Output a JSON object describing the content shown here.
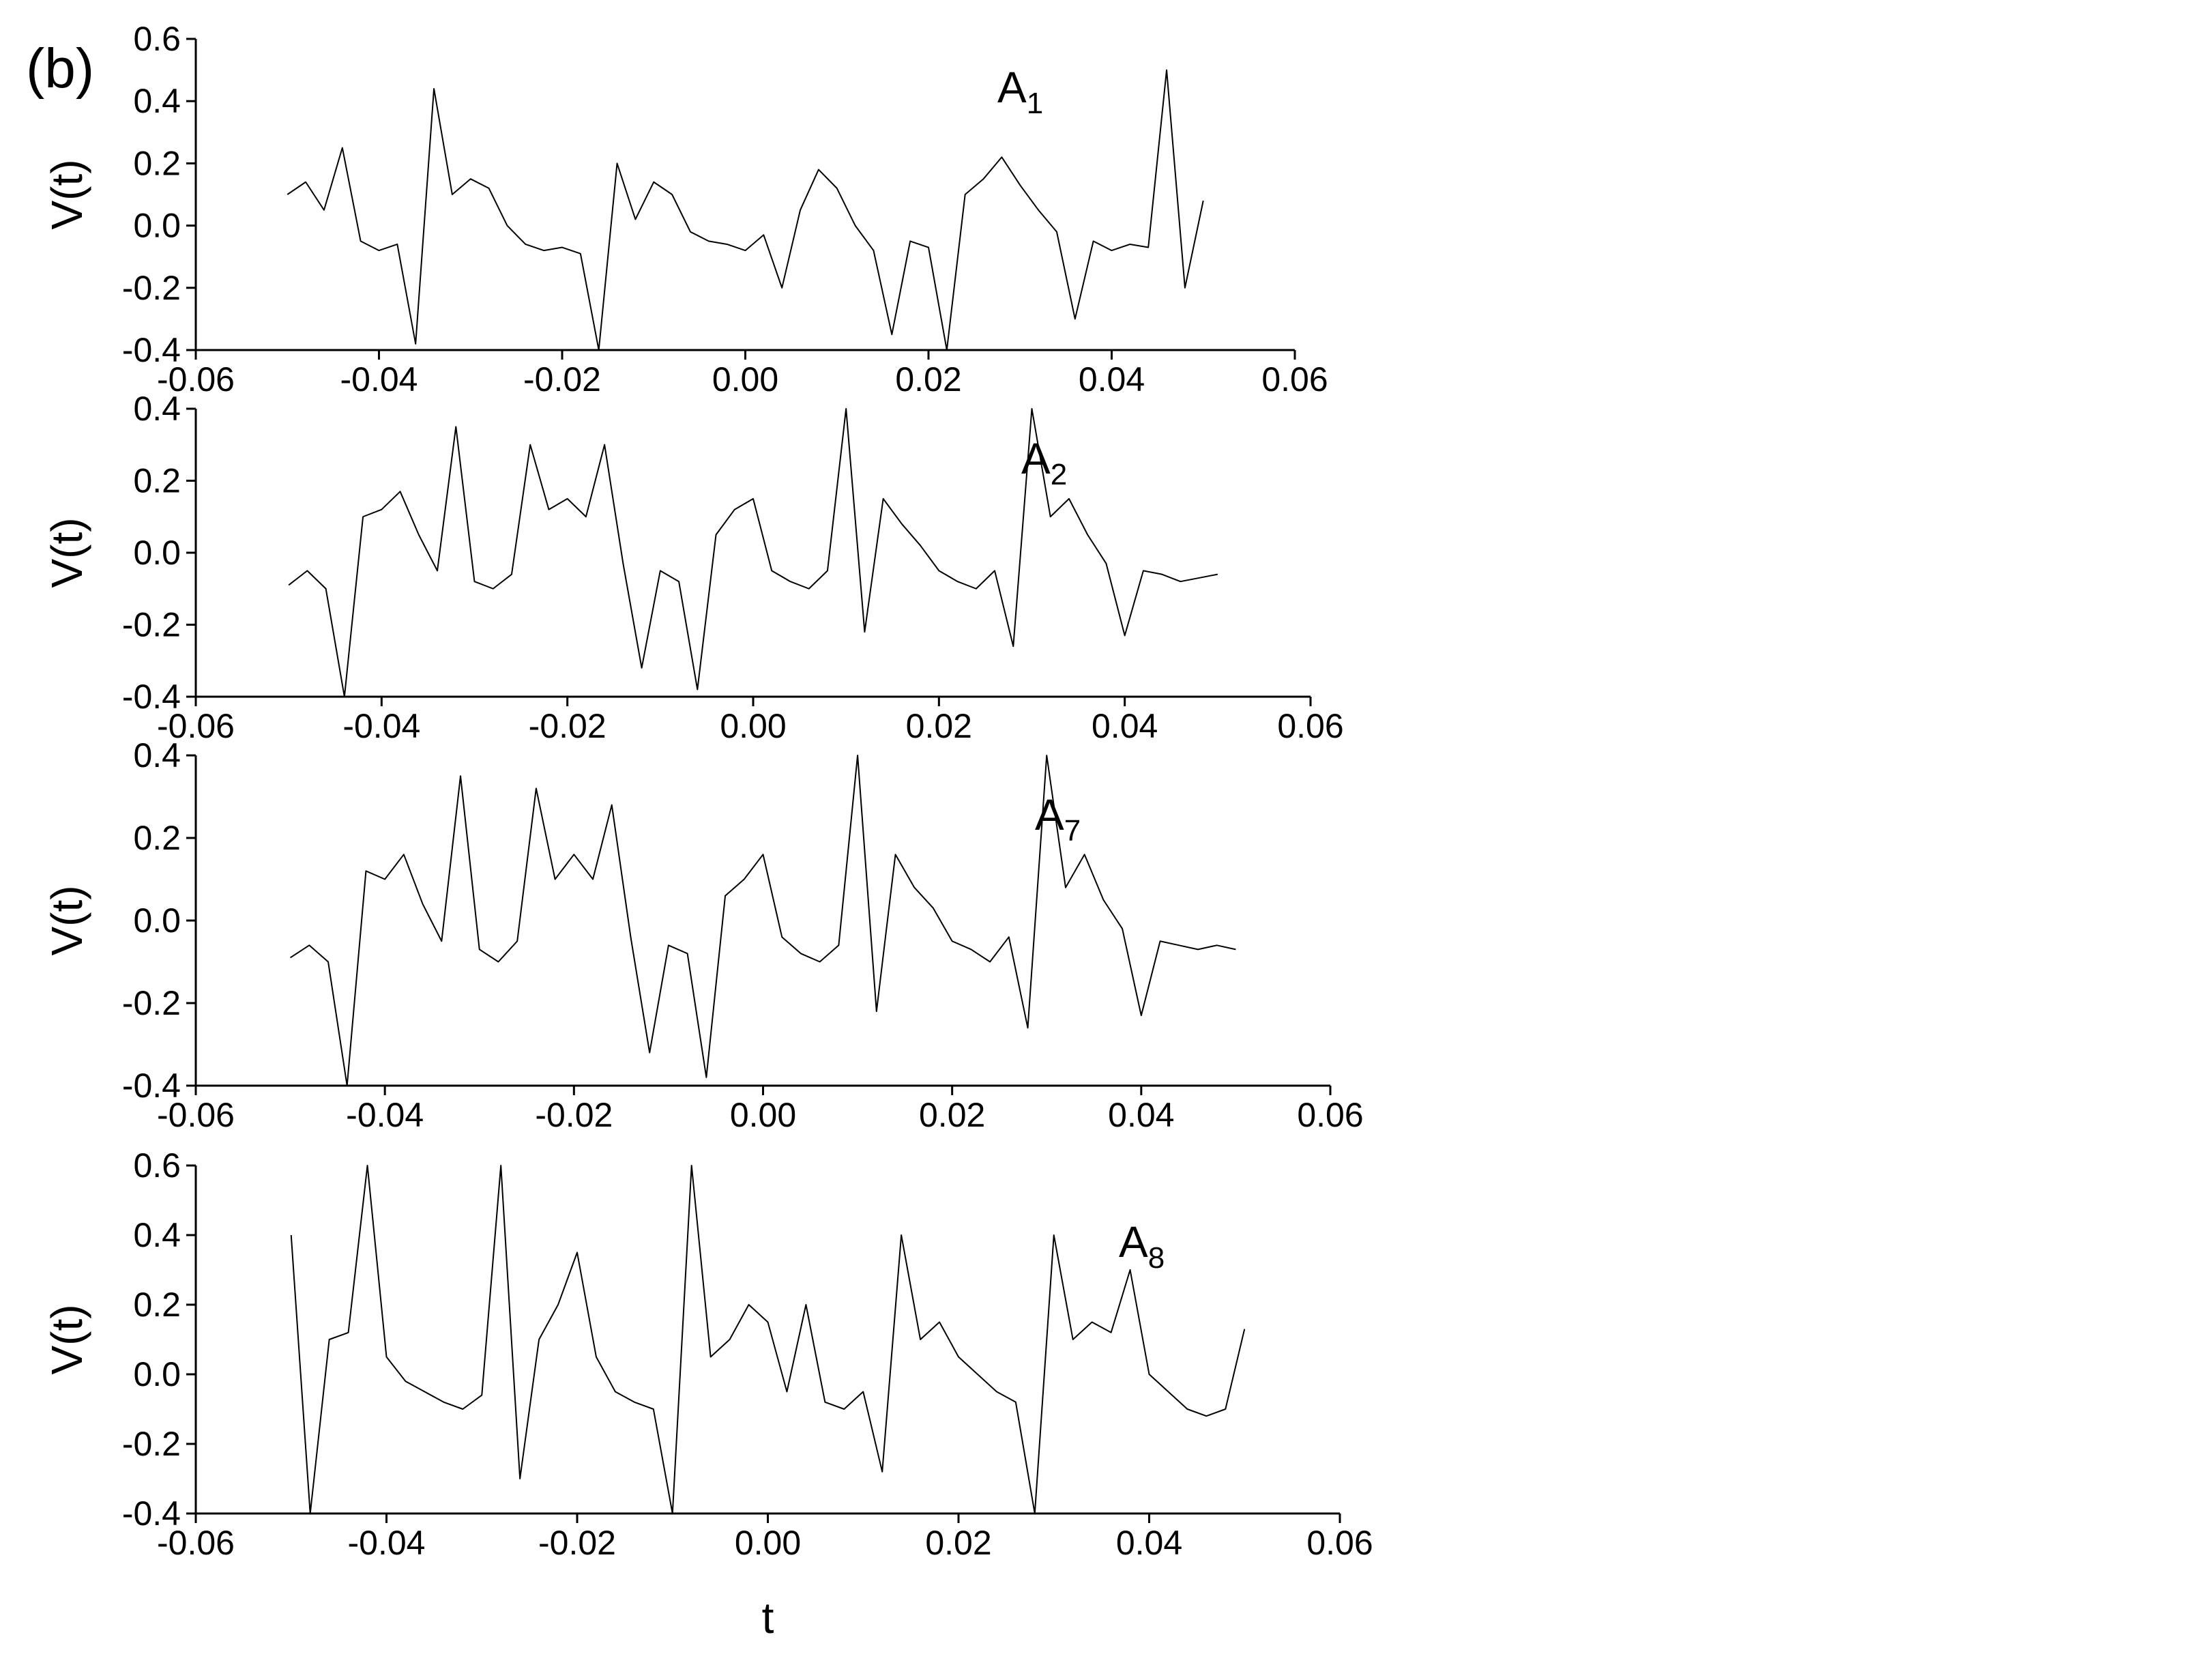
{
  "panel_label": "(b)",
  "chart_data": [
    {
      "type": "line",
      "annotation": "A",
      "annotation_sub": "1",
      "y_label": "V(t)",
      "color": "#000000",
      "x": [
        -0.05,
        -0.048,
        -0.046,
        -0.044,
        -0.042,
        -0.04,
        -0.038,
        -0.036,
        -0.034,
        -0.032,
        -0.03,
        -0.028,
        -0.026,
        -0.024,
        -0.022,
        -0.02,
        -0.018,
        -0.016,
        -0.014,
        -0.012,
        -0.01,
        -0.008,
        -0.006,
        -0.004,
        -0.002,
        0,
        0.002,
        0.004,
        0.006,
        0.008,
        0.01,
        0.012,
        0.014,
        0.016,
        0.018,
        0.02,
        0.022,
        0.024,
        0.026,
        0.028,
        0.03,
        0.032,
        0.034,
        0.036,
        0.038,
        0.04,
        0.042,
        0.044,
        0.046,
        0.048,
        0.05
      ],
      "values": [
        0.1,
        0.14,
        0.05,
        0.25,
        -0.05,
        -0.08,
        -0.06,
        -0.38,
        0.44,
        0.1,
        0.15,
        0.12,
        0.0,
        -0.06,
        -0.08,
        -0.07,
        -0.09,
        -0.4,
        0.2,
        0.02,
        0.14,
        0.1,
        -0.02,
        -0.05,
        -0.06,
        -0.08,
        -0.03,
        -0.2,
        0.05,
        0.18,
        0.12,
        0.0,
        -0.08,
        -0.35,
        -0.05,
        -0.07,
        -0.4,
        0.1,
        0.15,
        0.22,
        0.13,
        0.05,
        -0.02,
        -0.3,
        -0.05,
        -0.08,
        -0.06,
        -0.07,
        0.5,
        -0.2,
        0.08
      ],
      "xlim": [
        -0.06,
        0.06
      ],
      "ylim": [
        -0.4,
        0.6
      ],
      "xticks": [
        -0.06,
        -0.04,
        -0.02,
        {
          "value": 0,
          "label": "0.00"
        },
        0.02,
        0.04,
        0.06
      ],
      "yticks": [
        -0.4,
        -0.2,
        {
          "value": 0,
          "label": "0.0"
        },
        0.2,
        0.4,
        0.6
      ]
    },
    {
      "type": "line",
      "annotation": "A",
      "annotation_sub": "2",
      "y_label": "V(t)",
      "color": "#000000",
      "x": [
        -0.05,
        -0.048,
        -0.046,
        -0.044,
        -0.042,
        -0.04,
        -0.038,
        -0.036,
        -0.034,
        -0.032,
        -0.03,
        -0.028,
        -0.026,
        -0.024,
        -0.022,
        -0.02,
        -0.018,
        -0.016,
        -0.014,
        -0.012,
        -0.01,
        -0.008,
        -0.006,
        -0.004,
        -0.002,
        0,
        0.002,
        0.004,
        0.006,
        0.008,
        0.01,
        0.012,
        0.014,
        0.016,
        0.018,
        0.02,
        0.022,
        0.024,
        0.026,
        0.028,
        0.03,
        0.032,
        0.034,
        0.036,
        0.038,
        0.04,
        0.042,
        0.044,
        0.046,
        0.048,
        0.05
      ],
      "values": [
        -0.09,
        -0.05,
        -0.1,
        -0.4,
        0.1,
        0.12,
        0.17,
        0.05,
        -0.05,
        0.35,
        -0.08,
        -0.1,
        -0.06,
        0.3,
        0.12,
        0.15,
        0.1,
        0.3,
        -0.03,
        -0.32,
        -0.05,
        -0.08,
        -0.38,
        0.05,
        0.12,
        0.15,
        -0.05,
        -0.08,
        -0.1,
        -0.05,
        0.4,
        -0.22,
        0.15,
        0.08,
        0.02,
        -0.05,
        -0.08,
        -0.1,
        -0.05,
        -0.26,
        0.4,
        0.1,
        0.15,
        0.05,
        -0.03,
        -0.23,
        -0.05,
        -0.06,
        -0.08,
        -0.07,
        -0.06
      ],
      "xlim": [
        -0.06,
        0.06
      ],
      "ylim": [
        -0.4,
        0.4
      ],
      "xticks": [
        -0.06,
        -0.04,
        -0.02,
        {
          "value": 0,
          "label": "0.00"
        },
        0.02,
        0.04,
        0.06
      ],
      "yticks": [
        -0.4,
        -0.2,
        {
          "value": 0,
          "label": "0.0"
        },
        0.2,
        0.4
      ]
    },
    {
      "type": "line",
      "annotation": "A",
      "annotation_sub": "7",
      "y_label": "V(t)",
      "color": "#000000",
      "x": [
        -0.05,
        -0.048,
        -0.046,
        -0.044,
        -0.042,
        -0.04,
        -0.038,
        -0.036,
        -0.034,
        -0.032,
        -0.03,
        -0.028,
        -0.026,
        -0.024,
        -0.022,
        -0.02,
        -0.018,
        -0.016,
        -0.014,
        -0.012,
        -0.01,
        -0.008,
        -0.006,
        -0.004,
        -0.002,
        0,
        0.002,
        0.004,
        0.006,
        0.008,
        0.01,
        0.012,
        0.014,
        0.016,
        0.018,
        0.02,
        0.022,
        0.024,
        0.026,
        0.028,
        0.03,
        0.032,
        0.034,
        0.036,
        0.038,
        0.04,
        0.042,
        0.044,
        0.046,
        0.048,
        0.05
      ],
      "values": [
        -0.09,
        -0.06,
        -0.1,
        -0.4,
        0.12,
        0.1,
        0.16,
        0.04,
        -0.05,
        0.35,
        -0.07,
        -0.1,
        -0.05,
        0.32,
        0.1,
        0.16,
        0.1,
        0.28,
        -0.04,
        -0.32,
        -0.06,
        -0.08,
        -0.38,
        0.06,
        0.1,
        0.16,
        -0.04,
        -0.08,
        -0.1,
        -0.06,
        0.4,
        -0.22,
        0.16,
        0.08,
        0.03,
        -0.05,
        -0.07,
        -0.1,
        -0.04,
        -0.26,
        0.4,
        0.08,
        0.16,
        0.05,
        -0.02,
        -0.23,
        -0.05,
        -0.06,
        -0.07,
        -0.06,
        -0.07
      ],
      "xlim": [
        -0.06,
        0.06
      ],
      "ylim": [
        -0.4,
        0.4
      ],
      "xticks": [
        -0.06,
        -0.04,
        -0.02,
        {
          "value": 0,
          "label": "0.00"
        },
        0.02,
        0.04,
        0.06
      ],
      "yticks": [
        -0.4,
        -0.2,
        {
          "value": 0,
          "label": "0.0"
        },
        0.2,
        0.4
      ]
    },
    {
      "type": "line",
      "annotation": "A",
      "annotation_sub": "8",
      "y_label": "V(t)",
      "x_label": "t",
      "color": "#000000",
      "x": [
        -0.05,
        -0.048,
        -0.046,
        -0.044,
        -0.042,
        -0.04,
        -0.038,
        -0.036,
        -0.034,
        -0.032,
        -0.03,
        -0.028,
        -0.026,
        -0.024,
        -0.022,
        -0.02,
        -0.018,
        -0.016,
        -0.014,
        -0.012,
        -0.01,
        -0.008,
        -0.006,
        -0.004,
        -0.002,
        0,
        0.002,
        0.004,
        0.006,
        0.008,
        0.01,
        0.012,
        0.014,
        0.016,
        0.018,
        0.02,
        0.022,
        0.024,
        0.026,
        0.028,
        0.03,
        0.032,
        0.034,
        0.036,
        0.038,
        0.04,
        0.042,
        0.044,
        0.046,
        0.048,
        0.05
      ],
      "values": [
        0.4,
        -0.4,
        0.1,
        0.12,
        0.6,
        0.05,
        -0.02,
        -0.05,
        -0.08,
        -0.1,
        -0.06,
        0.6,
        -0.3,
        0.1,
        0.2,
        0.35,
        0.05,
        -0.05,
        -0.08,
        -0.1,
        -0.4,
        0.6,
        0.05,
        0.1,
        0.2,
        0.15,
        -0.05,
        0.2,
        -0.08,
        -0.1,
        -0.05,
        -0.28,
        0.4,
        0.1,
        0.15,
        0.05,
        0.0,
        -0.05,
        -0.08,
        -0.4,
        0.4,
        0.1,
        0.15,
        0.12,
        0.3,
        0.0,
        -0.05,
        -0.1,
        -0.12,
        -0.1,
        0.13
      ],
      "xlim": [
        -0.06,
        0.06
      ],
      "ylim": [
        -0.4,
        0.6
      ],
      "xticks": [
        -0.06,
        -0.04,
        -0.02,
        {
          "value": 0,
          "label": "0.00"
        },
        0.02,
        0.04,
        0.06
      ],
      "yticks": [
        -0.4,
        -0.2,
        {
          "value": 0,
          "label": "0.0"
        },
        0.2,
        0.4,
        0.6
      ]
    }
  ]
}
